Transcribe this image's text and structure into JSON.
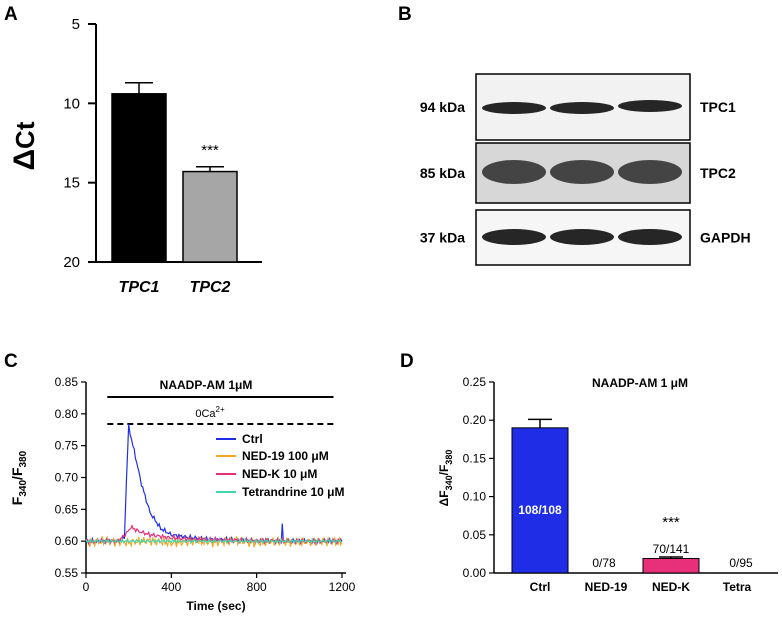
{
  "chart_data": [
    {
      "panel": "A",
      "type": "bar",
      "ylabel": "Ct",
      "ylabel_delta": "Δ",
      "ylim": [
        20,
        5
      ],
      "y_inverted": true,
      "yticks": [
        "5",
        "10",
        "15",
        "20"
      ],
      "categories": [
        "TPC1",
        "TPC2"
      ],
      "values": [
        9.4,
        14.3
      ],
      "errors": [
        0.7,
        0.3
      ],
      "bar_colors": [
        "#000000",
        "#a6a6a6"
      ],
      "annotations": [
        {
          "category": "TPC2",
          "text": "***"
        }
      ]
    },
    {
      "panel": "B",
      "type": "blot",
      "bands": [
        {
          "mw": "94 kDa",
          "name": "TPC1",
          "lanes": 3
        },
        {
          "mw": "85 kDa",
          "name": "TPC2",
          "lanes": 3
        },
        {
          "mw": "37 kDa",
          "name": "GAPDH",
          "lanes": 3
        }
      ]
    },
    {
      "panel": "C",
      "type": "line",
      "xlabel": "Time (sec)",
      "ylabel": "F340/F380",
      "ylabel_parts": {
        "base": "F",
        "sub1": "340",
        "slash": "/F",
        "sub2": "380"
      },
      "xlim": [
        0,
        1200
      ],
      "ylim": [
        0.55,
        0.85
      ],
      "xticks": [
        "0",
        "400",
        "800",
        "1200"
      ],
      "yticks": [
        "0.55",
        "0.60",
        "0.65",
        "0.70",
        "0.75",
        "0.80",
        "0.85"
      ],
      "solid_bar_label": "NAADP-AM 1μM",
      "solid_bar_range": [
        100,
        1160
      ],
      "dashed_bar_label_base": "0Ca",
      "dashed_bar_label_sup": "2+",
      "dashed_bar_range": [
        100,
        1160
      ],
      "series": [
        {
          "name": "Ctrl",
          "color": "#1f2ee6",
          "x": [
            0,
            150,
            180,
            190,
            200,
            220,
            260,
            300,
            350,
            400,
            500,
            600,
            700,
            800,
            900,
            915,
            920,
            925,
            930,
            1000,
            1100,
            1200
          ],
          "y": [
            0.6,
            0.6,
            0.605,
            0.7,
            0.78,
            0.75,
            0.69,
            0.645,
            0.62,
            0.61,
            0.605,
            0.603,
            0.602,
            0.6,
            0.6,
            0.6,
            0.625,
            0.6,
            0.6,
            0.6,
            0.6,
            0.6
          ]
        },
        {
          "name": "NED-19 100 μM",
          "color": "#f5a623",
          "x": [
            0,
            100,
            200,
            300,
            400,
            500,
            600,
            700,
            800,
            900,
            1000,
            1100,
            1200
          ],
          "y": [
            0.598,
            0.6,
            0.598,
            0.601,
            0.597,
            0.6,
            0.598,
            0.601,
            0.597,
            0.6,
            0.598,
            0.6,
            0.598
          ]
        },
        {
          "name": "NED-K 10 μM",
          "color": "#e8307a",
          "x": [
            0,
            150,
            190,
            210,
            250,
            300,
            400,
            500,
            600,
            800,
            1000,
            1200
          ],
          "y": [
            0.6,
            0.6,
            0.612,
            0.622,
            0.615,
            0.61,
            0.605,
            0.603,
            0.602,
            0.601,
            0.6,
            0.6
          ]
        },
        {
          "name": "Tetrandrine 10 μM",
          "color": "#3fd6b0",
          "x": [
            0,
            200,
            400,
            600,
            800,
            1000,
            1200
          ],
          "y": [
            0.6,
            0.6,
            0.6,
            0.6,
            0.6,
            0.6,
            0.6
          ]
        }
      ]
    },
    {
      "panel": "D",
      "type": "bar",
      "title": "NAADP-AM 1 μM",
      "ylabel": "ΔF340/F380",
      "ylabel_parts": {
        "base": "ΔF",
        "sub1": "340",
        "slash": "/F",
        "sub2": "380"
      },
      "ylim": [
        0,
        0.25
      ],
      "yticks": [
        "0.00",
        "0.05",
        "0.10",
        "0.15",
        "0.20",
        "0.25"
      ],
      "categories": [
        "Ctrl",
        "NED-19",
        "NED-K",
        "Tetra"
      ],
      "values": [
        0.19,
        0.0,
        0.019,
        0.0
      ],
      "errors": [
        0.011,
        0,
        0.002,
        0
      ],
      "bar_colors": [
        "#1f2ee6",
        "#1f2ee6",
        "#e8307a",
        "#e8307a"
      ],
      "bar_labels": [
        "108/108",
        "0/78",
        "70/141",
        "0/95"
      ],
      "annotations": [
        {
          "category": "NED-K",
          "text": "***"
        }
      ]
    }
  ],
  "panel_labels": [
    "A",
    "B",
    "C",
    "D"
  ]
}
